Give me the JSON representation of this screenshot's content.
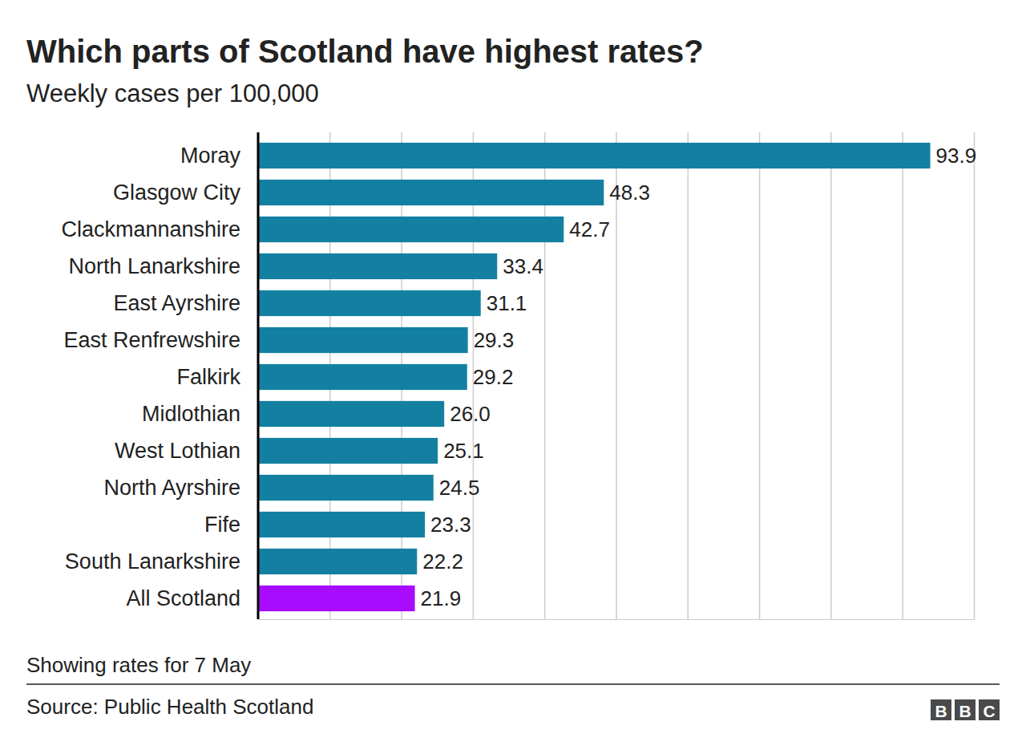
{
  "chart_data": {
    "type": "bar",
    "orientation": "horizontal",
    "title": "Which parts of Scotland have highest rates?",
    "subtitle": "Weekly cases per 100,000",
    "categories": [
      "Moray",
      "Glasgow City",
      "Clackmannanshire",
      "North Lanarkshire",
      "East Ayrshire",
      "East Renfrewshire",
      "Falkirk",
      "Midlothian",
      "West Lothian",
      "North Ayrshire",
      "Fife",
      "South Lanarkshire",
      "All Scotland"
    ],
    "values": [
      93.9,
      48.3,
      42.7,
      33.4,
      31.1,
      29.3,
      29.2,
      26.0,
      25.1,
      24.5,
      23.3,
      22.2,
      21.9
    ],
    "value_labels": [
      "93.9",
      "48.3",
      "42.7",
      "33.4",
      "31.1",
      "29.3",
      "29.2",
      "26.0",
      "25.1",
      "24.5",
      "23.3",
      "22.2",
      "21.9"
    ],
    "colors": [
      "#1380a1",
      "#1380a1",
      "#1380a1",
      "#1380a1",
      "#1380a1",
      "#1380a1",
      "#1380a1",
      "#1380a1",
      "#1380a1",
      "#1380a1",
      "#1380a1",
      "#1380a1",
      "#a80cff"
    ],
    "xlim": [
      0,
      100
    ],
    "xticks": [
      0,
      10,
      20,
      30,
      40,
      50,
      60,
      70,
      80,
      90,
      100
    ],
    "grid": true,
    "tick_labels": "y",
    "data_labels": true,
    "note": "Showing rates for 7 May",
    "source": "Source: Public Health Scotland",
    "logo": "BBC"
  }
}
